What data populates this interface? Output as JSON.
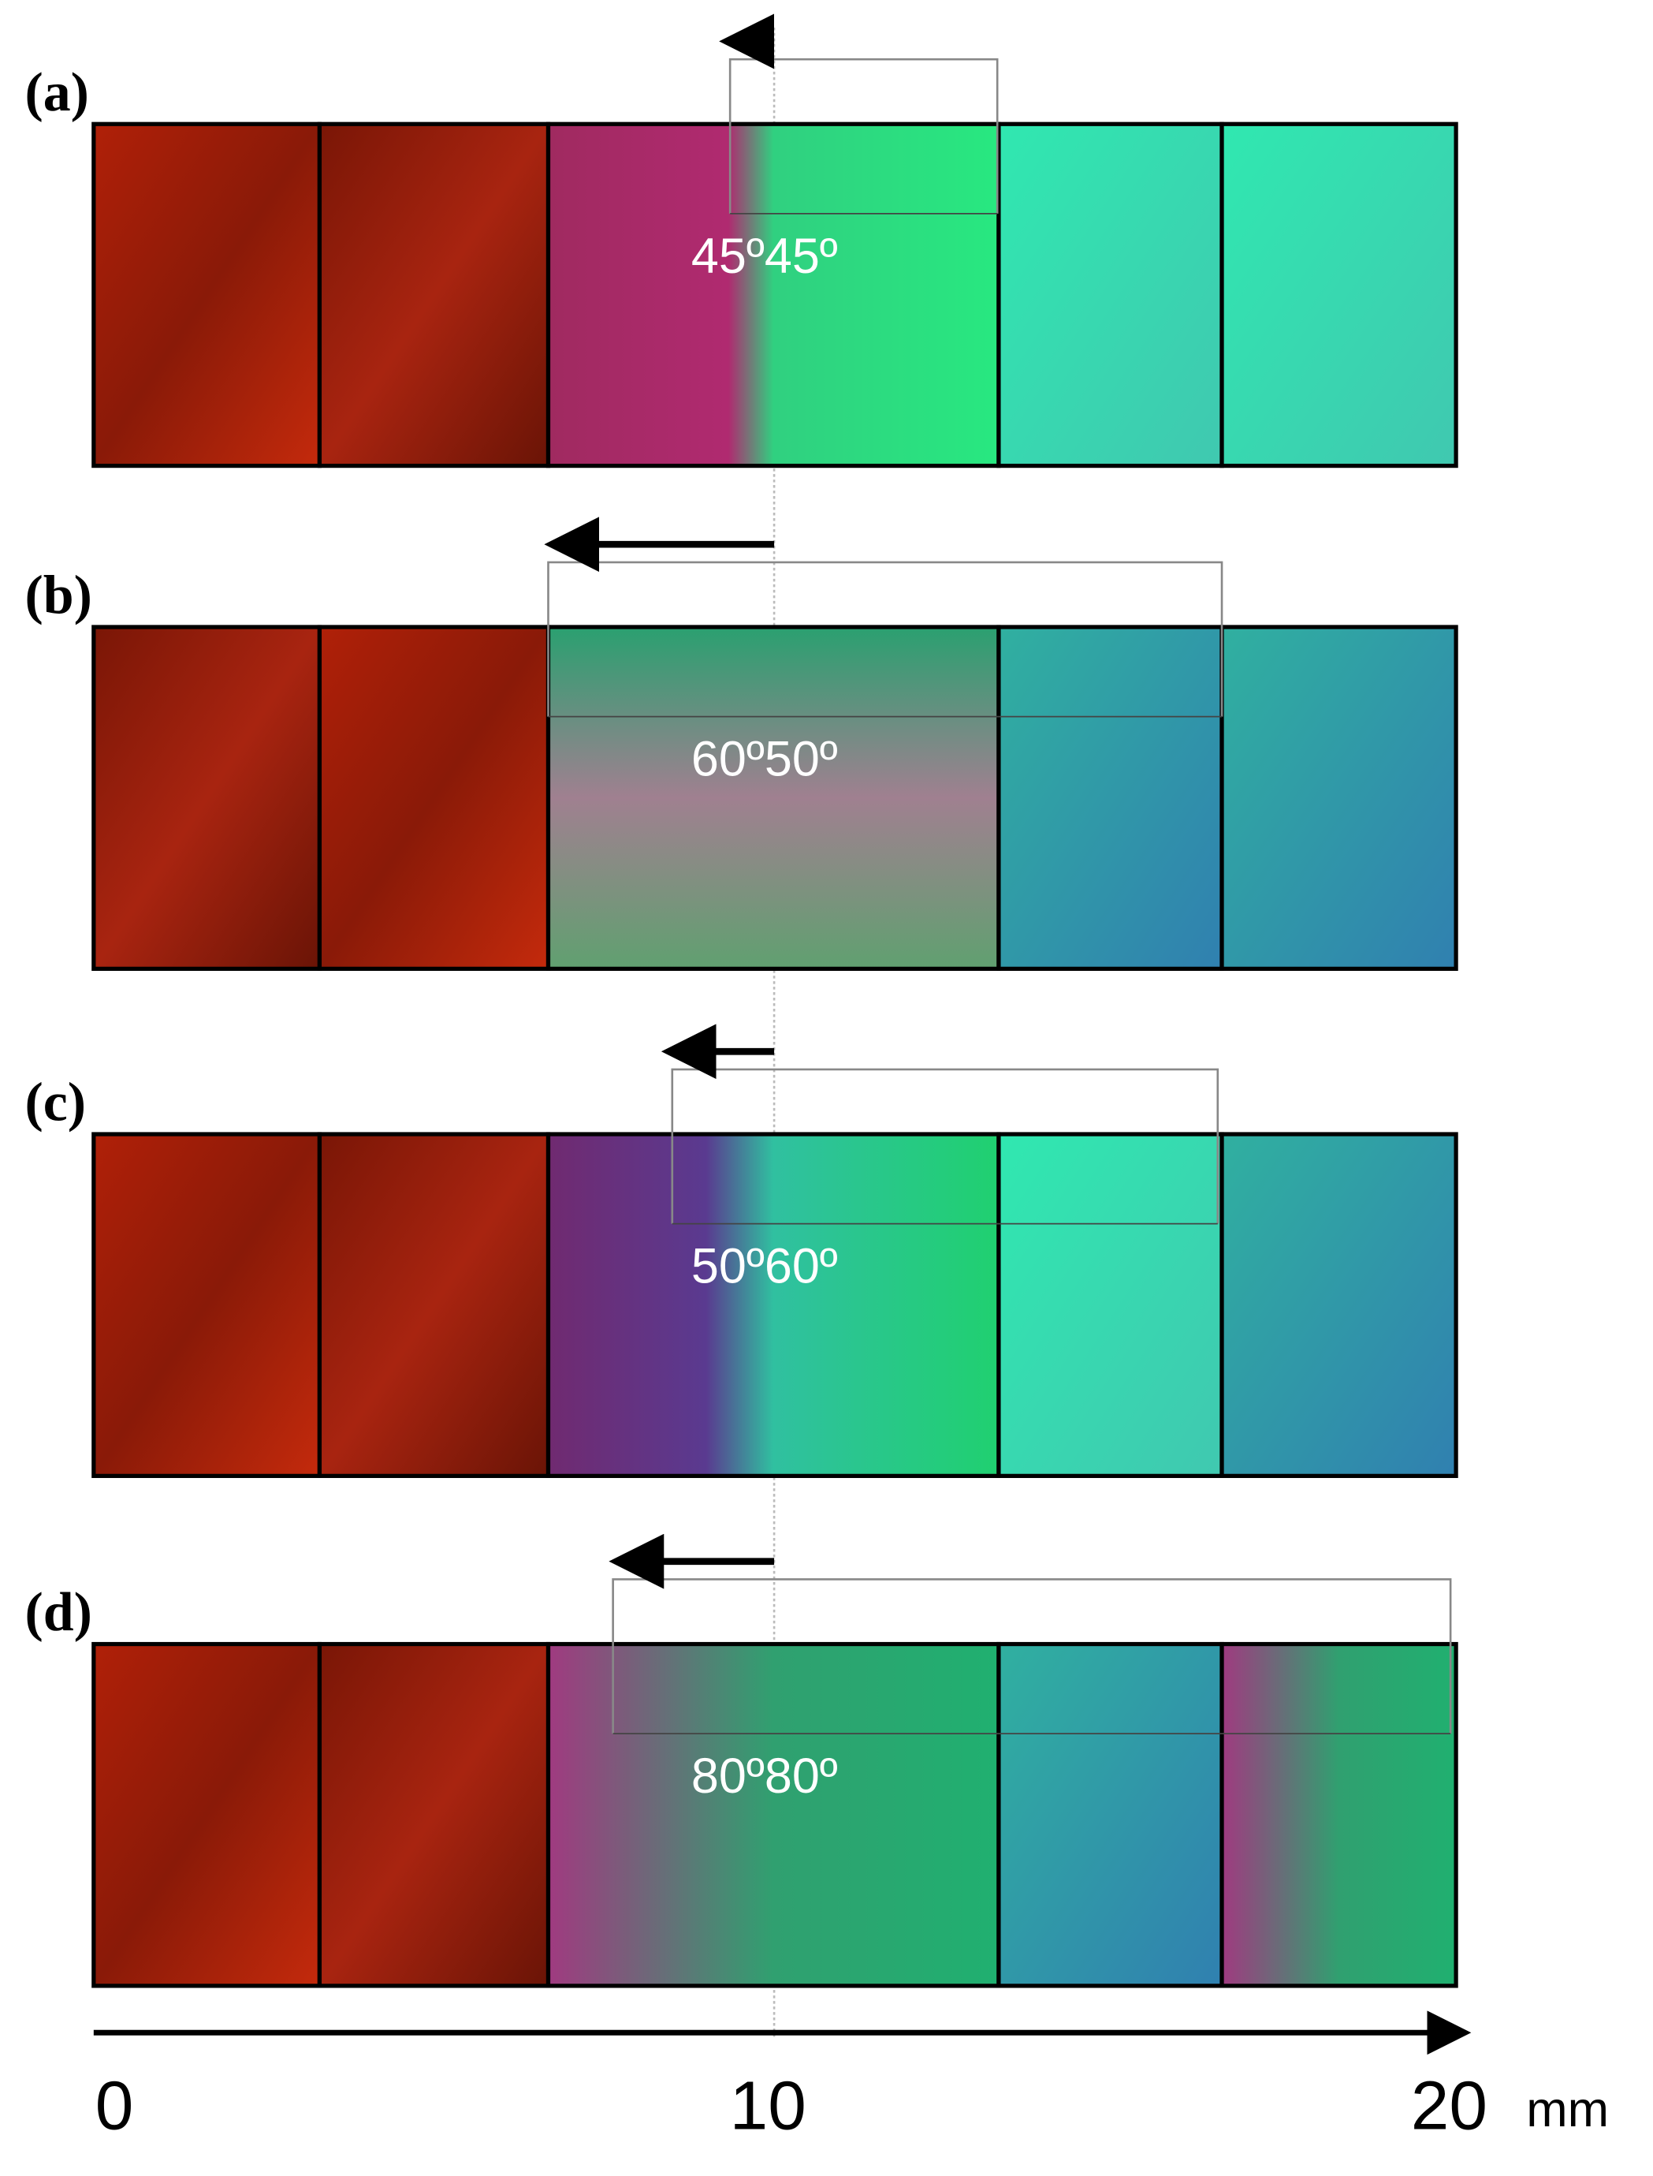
{
  "panels": [
    {
      "label": "(a)",
      "angle": "45º45º"
    },
    {
      "label": "(b)",
      "angle": "60º50º"
    },
    {
      "label": "(c)",
      "angle": "50º60º"
    },
    {
      "label": "(d)",
      "angle": "80º80º"
    }
  ],
  "axis": {
    "ticks": [
      0,
      10,
      20
    ],
    "unit": "mm"
  }
}
